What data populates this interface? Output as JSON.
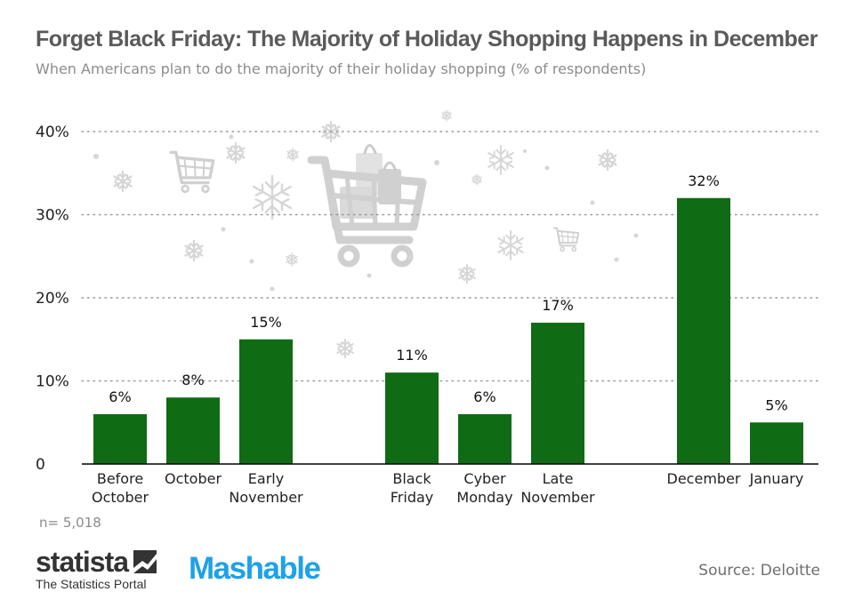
{
  "chart_data": {
    "type": "bar",
    "title": "Forget Black Friday: The Majority of Holiday Shopping Happens in December",
    "subtitle": "When Americans plan to do the majority of their holiday shopping (% of respondents)",
    "categories": [
      [
        "Before",
        "October"
      ],
      [
        "October"
      ],
      [
        "Early",
        "November"
      ],
      [
        "Black",
        "Friday"
      ],
      [
        "Cyber",
        "Monday"
      ],
      [
        "Late",
        "November"
      ],
      [
        "December"
      ],
      [
        "January"
      ]
    ],
    "values": [
      6,
      8,
      15,
      11,
      6,
      17,
      32,
      5
    ],
    "value_labels": [
      "6%",
      "8%",
      "15%",
      "11%",
      "6%",
      "17%",
      "32%",
      "5%"
    ],
    "group_sizes": [
      3,
      3,
      2
    ],
    "y_ticks": [
      0,
      10,
      20,
      30,
      40
    ],
    "y_tick_labels": [
      "0",
      "10%",
      "20%",
      "30%",
      "40%"
    ],
    "ylim": [
      0,
      40
    ],
    "grid": true,
    "bar_color": "#0f6b14",
    "background_decoration": "snowflake-and-shopping-cart-icons"
  },
  "note": "n= 5,018",
  "source": "Source: Deloitte",
  "logos": {
    "statista_name": "statista",
    "statista_tagline": "The Statistics Portal",
    "partner": "Mashable"
  },
  "colors": {
    "title": "#5a5a5a",
    "subtitle": "#8c8c8c",
    "bar": "#0f6b14",
    "mashable": "#1ea1e8",
    "decoration": "#d6d6d6"
  }
}
